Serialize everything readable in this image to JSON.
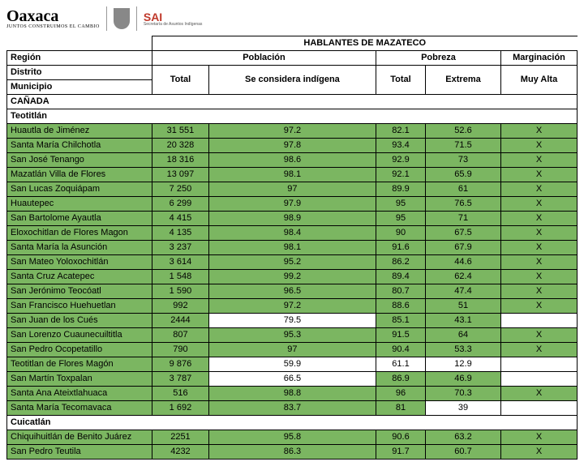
{
  "logos": {
    "oaxaca": "Oaxaca",
    "oaxaca_sub": "JUNTOS CONSTRUIMOS EL CAMBIO",
    "sai": "SAI",
    "sai_sub": "Secretaría de Asuntos Indígenas"
  },
  "headers": {
    "title": "HABLANTES DE MAZATECO",
    "region": "Región",
    "poblacion": "Población",
    "pobreza": "Pobreza",
    "marginacion": "Marginación",
    "distrito": "Distrito",
    "total1": "Total",
    "considera": "Se considera indígena",
    "total2": "Total",
    "extrema": "Extrema",
    "muyalta": "Muy Alta",
    "municipio": "Municipio"
  },
  "sections": [
    {
      "name": "CAÑADA",
      "subs": [
        {
          "name": "Teotitlán",
          "rows": [
            {
              "m": "Huautla de Jiménez",
              "t": "31 551",
              "c": "97.2",
              "p": "82.1",
              "e": "52.6",
              "x": "X",
              "hl": [
                1,
                1,
                1,
                1,
                1
              ]
            },
            {
              "m": "Santa María Chilchotla",
              "t": "20 328",
              "c": "97.8",
              "p": "93.4",
              "e": "71.5",
              "x": "X",
              "hl": [
                1,
                1,
                1,
                1,
                1
              ]
            },
            {
              "m": "San José Tenango",
              "t": "18 316",
              "c": "98.6",
              "p": "92.9",
              "e": "73",
              "x": "X",
              "hl": [
                1,
                1,
                1,
                1,
                1
              ]
            },
            {
              "m": "Mazatlán Villa de Flores",
              "t": "13 097",
              "c": "98.1",
              "p": "92.1",
              "e": "65.9",
              "x": "X",
              "hl": [
                1,
                1,
                1,
                1,
                1
              ]
            },
            {
              "m": "San Lucas Zoquiápam",
              "t": "7 250",
              "c": "97",
              "p": "89.9",
              "e": "61",
              "x": "X",
              "hl": [
                1,
                1,
                1,
                1,
                1
              ]
            },
            {
              "m": "Huautepec",
              "t": "6 299",
              "c": "97.9",
              "p": "95",
              "e": "76.5",
              "x": "X",
              "hl": [
                1,
                1,
                1,
                1,
                1
              ]
            },
            {
              "m": "San Bartolome Ayautla",
              "t": "4 415",
              "c": "98.9",
              "p": "95",
              "e": "71",
              "x": "X",
              "hl": [
                1,
                1,
                1,
                1,
                1
              ]
            },
            {
              "m": "Eloxochitlan de Flores Magon",
              "t": "4 135",
              "c": "98.4",
              "p": "90",
              "e": "67.5",
              "x": "X",
              "hl": [
                1,
                1,
                1,
                1,
                1
              ]
            },
            {
              "m": "Santa María la Asunción",
              "t": "3 237",
              "c": "98.1",
              "p": "91.6",
              "e": "67.9",
              "x": "X",
              "hl": [
                1,
                1,
                1,
                1,
                1
              ]
            },
            {
              "m": "San Mateo Yoloxochitlán",
              "t": "3 614",
              "c": "95.2",
              "p": "86.2",
              "e": "44.6",
              "x": "X",
              "hl": [
                1,
                1,
                1,
                1,
                1
              ]
            },
            {
              "m": "Santa Cruz Acatepec",
              "t": "1 548",
              "c": "99.2",
              "p": "89.4",
              "e": "62.4",
              "x": "X",
              "hl": [
                1,
                1,
                1,
                1,
                1
              ]
            },
            {
              "m": "San Jerónimo Teocóatl",
              "t": "1 590",
              "c": "96.5",
              "p": "80.7",
              "e": "47.4",
              "x": "X",
              "hl": [
                1,
                1,
                1,
                1,
                1
              ]
            },
            {
              "m": "San Francisco Huehuetlan",
              "t": "992",
              "c": "97.2",
              "p": "88.6",
              "e": "51",
              "x": "X",
              "hl": [
                1,
                1,
                1,
                1,
                1
              ]
            },
            {
              "m": "San Juan de los Cués",
              "t": "2444",
              "c": "79.5",
              "p": "85.1",
              "e": "43.1",
              "x": "",
              "hl": [
                1,
                0,
                1,
                1,
                0
              ]
            },
            {
              "m": "San Lorenzo Cuaunecuiltitla",
              "t": "807",
              "c": "95.3",
              "p": "91.5",
              "e": "64",
              "x": "X",
              "hl": [
                1,
                1,
                1,
                1,
                1
              ]
            },
            {
              "m": "San Pedro Ocopetatillo",
              "t": "790",
              "c": "97",
              "p": "90.4",
              "e": "53.3",
              "x": "X",
              "hl": [
                1,
                1,
                1,
                1,
                1
              ]
            },
            {
              "m": "Teotitlan de Flores Magón",
              "t": "9 876",
              "c": "59.9",
              "p": "61.1",
              "e": "12.9",
              "x": "",
              "hl": [
                1,
                0,
                0,
                0,
                0
              ]
            },
            {
              "m": "San Martín Toxpalan",
              "t": "3 787",
              "c": "66.5",
              "p": "86.9",
              "e": "46.9",
              "x": "",
              "hl": [
                1,
                0,
                1,
                1,
                0
              ]
            },
            {
              "m": "Santa Ana Ateixtlahuaca",
              "t": "516",
              "c": "98.8",
              "p": "96",
              "e": "70.3",
              "x": "X",
              "hl": [
                1,
                1,
                1,
                1,
                1
              ]
            },
            {
              "m": "Santa María Tecomavaca",
              "t": "1 692",
              "c": "83.7",
              "p": "81",
              "e": "39",
              "x": "",
              "hl": [
                1,
                1,
                1,
                0,
                0
              ]
            }
          ]
        },
        {
          "name": "Cuicatlán",
          "rows": [
            {
              "m": "Chiquihuitlán de Benito Juárez",
              "t": "2251",
              "c": "95.8",
              "p": "90.6",
              "e": "63.2",
              "x": "X",
              "hl": [
                1,
                1,
                1,
                1,
                1
              ]
            },
            {
              "m": "San Pedro Teutila",
              "t": "4232",
              "c": "86.3",
              "p": "91.7",
              "e": "60.7",
              "x": "X",
              "hl": [
                1,
                1,
                1,
                1,
                1
              ]
            }
          ]
        }
      ]
    }
  ]
}
